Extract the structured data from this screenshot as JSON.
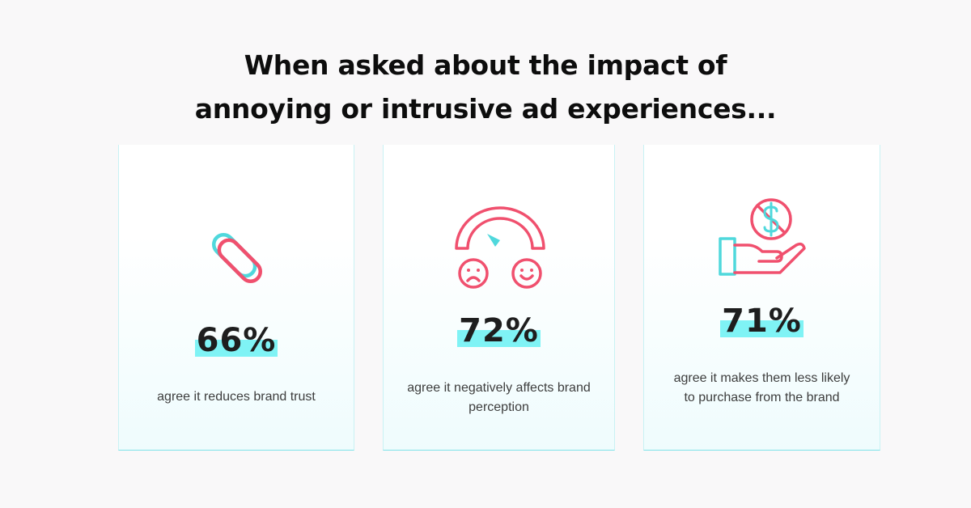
{
  "headline": {
    "line1": "When asked about the impact of",
    "line2": "annoying or intrusive ad experiences..."
  },
  "colors": {
    "accent_teal": "#4fd8dc",
    "accent_pink": "#f0506e",
    "highlight": "#7ff3f5"
  },
  "cards": [
    {
      "icon": "broken-link-icon",
      "stat": "66%",
      "description": "agree it reduces brand trust"
    },
    {
      "icon": "sentiment-gauge-icon",
      "stat": "72%",
      "description": "agree it negatively affects brand perception"
    },
    {
      "icon": "no-money-hand-icon",
      "stat": "71%",
      "description": "agree it makes them less likely to purchase from the brand"
    }
  ]
}
